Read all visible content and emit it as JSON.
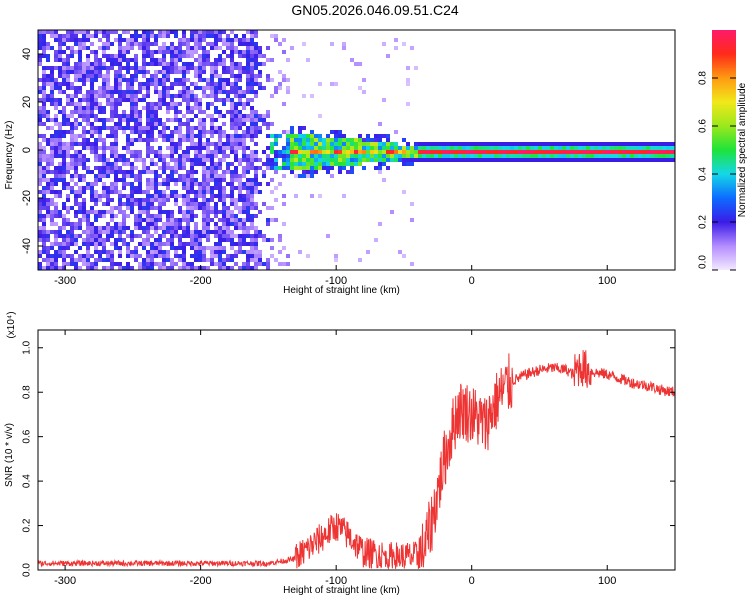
{
  "title": "GN05.2026.046.09.51.C24",
  "colors": {
    "signal": "#ee3333",
    "background": "#ffffff",
    "noise": "#6a16e8"
  },
  "chart_data": [
    {
      "type": "heatmap",
      "title": "GN05.2026.046.09.51.C24",
      "xlabel": "Height of straight line (km)",
      "ylabel": "Frequency (Hz)",
      "xlim": [
        -320,
        150
      ],
      "ylim": [
        -50,
        50
      ],
      "x_ticks": [
        -300,
        -200,
        -100,
        0,
        100
      ],
      "y_ticks": [
        -40,
        -20,
        0,
        20,
        40
      ],
      "colorbar": {
        "label": "Normalized spectral amplitude",
        "range": [
          0,
          1
        ],
        "ticks": [
          "0.0",
          "0.2",
          "0.4",
          "0.6",
          "0.8"
        ]
      },
      "regions": [
        {
          "name": "broadband noise",
          "x_range": [
            -320,
            -150
          ],
          "y_range": [
            -50,
            50
          ],
          "amplitude": 0.15
        },
        {
          "name": "narrowing band",
          "x_range": [
            -150,
            -40
          ],
          "y_range": [
            -8,
            8
          ],
          "amplitude": 0.45
        },
        {
          "name": "narrow carrier line",
          "x_range": [
            -40,
            150
          ],
          "y_range": [
            -2,
            2
          ],
          "amplitude": 0.95
        }
      ]
    },
    {
      "type": "line",
      "xlabel": "Height of straight line (km)",
      "ylabel": "SNR (10 * v/v)",
      "y_scale": "(x10⁴)",
      "xlim": [
        -320,
        150
      ],
      "ylim": [
        0,
        1.08
      ],
      "x_ticks": [
        -300,
        -200,
        -100,
        0,
        100
      ],
      "y_ticks": [
        "0.0",
        "0.2",
        "0.4",
        "0.6",
        "0.8",
        "1.0"
      ],
      "series": [
        {
          "name": "SNR",
          "x": [
            -320,
            -300,
            -250,
            -200,
            -150,
            -130,
            -120,
            -110,
            -100,
            -90,
            -80,
            -70,
            -60,
            -50,
            -40,
            -35,
            -30,
            -25,
            -20,
            -15,
            -10,
            -5,
            0,
            5,
            10,
            15,
            20,
            25,
            30,
            40,
            50,
            60,
            70,
            75,
            80,
            85,
            90,
            100,
            110,
            120,
            130,
            140,
            150
          ],
          "values": [
            0.03,
            0.03,
            0.03,
            0.03,
            0.03,
            0.05,
            0.1,
            0.15,
            0.2,
            0.15,
            0.08,
            0.07,
            0.06,
            0.06,
            0.06,
            0.1,
            0.2,
            0.35,
            0.5,
            0.62,
            0.72,
            0.72,
            0.7,
            0.68,
            0.65,
            0.72,
            0.78,
            0.82,
            0.85,
            0.88,
            0.9,
            0.91,
            0.9,
            0.88,
            0.92,
            0.9,
            0.89,
            0.88,
            0.86,
            0.84,
            0.83,
            0.81,
            0.8
          ]
        }
      ]
    }
  ]
}
